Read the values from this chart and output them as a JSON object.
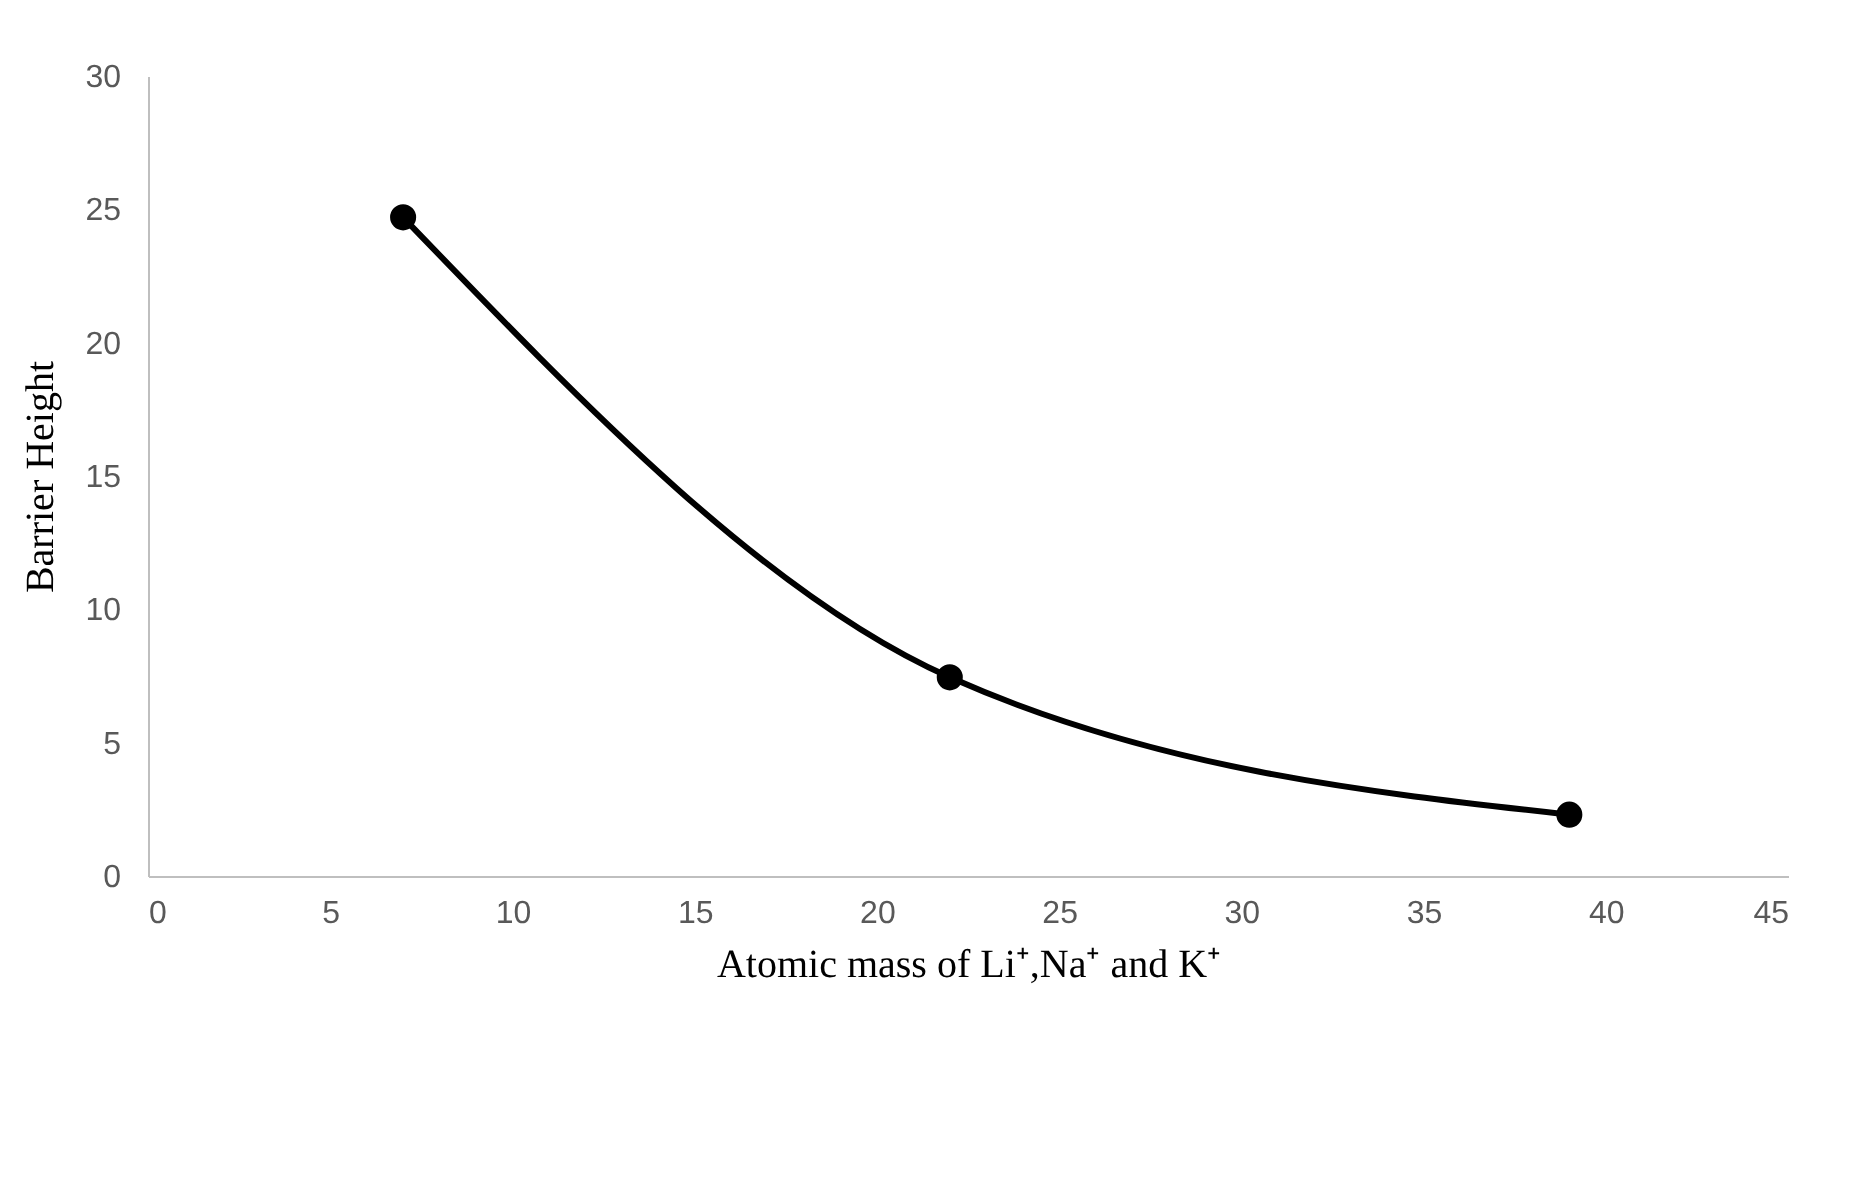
{
  "chart_data": {
    "type": "line",
    "xlabel": "Atomic mass of Li⁺,Na⁺ and K⁺",
    "ylabel": "Barrier Height",
    "x": [
      7,
      22,
      39
    ],
    "series": [
      {
        "color": "#000000",
        "values": [
          24.7,
          7.45,
          2.3
        ]
      }
    ],
    "xlim": [
      0,
      45
    ],
    "xticks": [
      0,
      5,
      10,
      15,
      20,
      25,
      30,
      35,
      40,
      45
    ],
    "ylim": [
      0,
      30
    ],
    "yticks": [
      0,
      5,
      10,
      15,
      20,
      25,
      30
    ],
    "grid": false,
    "marker": "circle",
    "line_style": "solid"
  }
}
